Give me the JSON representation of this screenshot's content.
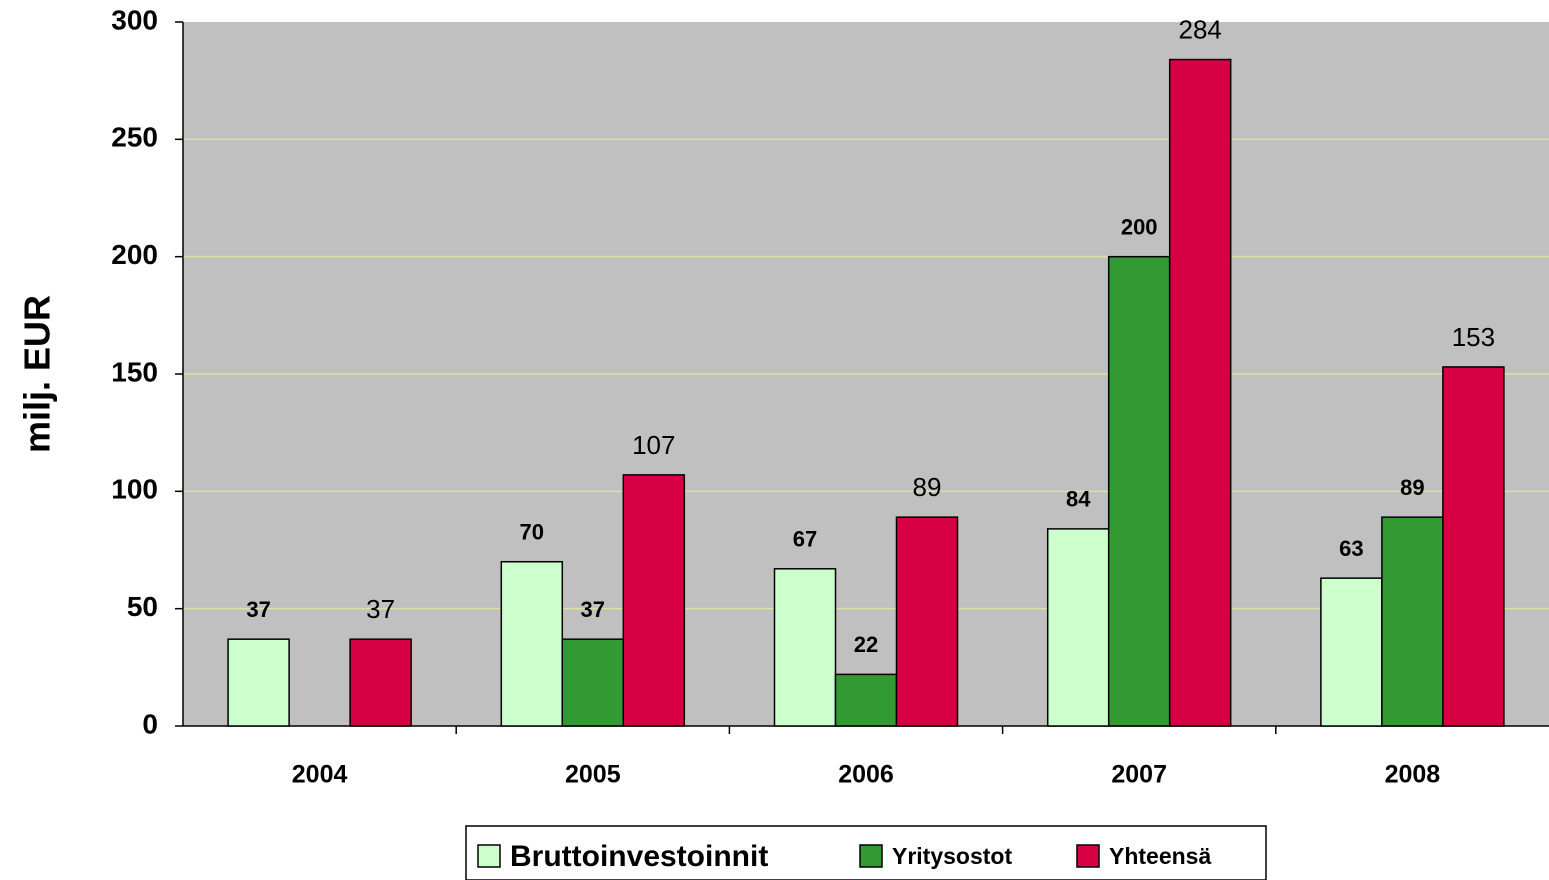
{
  "chart_data": {
    "type": "bar",
    "y_label": "milj. EUR",
    "categories": [
      "2004",
      "2005",
      "2006",
      "2007",
      "2008"
    ],
    "series": [
      {
        "name": "Bruttoinvestoinnit",
        "color": "#ccffcc",
        "values": [
          37,
          70,
          67,
          84,
          63
        ]
      },
      {
        "name": "Yritysostot",
        "color": "#339933",
        "values": [
          null,
          37,
          22,
          200,
          89
        ]
      },
      {
        "name": "Yhteensä",
        "color": "#d80045",
        "values": [
          37,
          107,
          89,
          284,
          153
        ]
      }
    ],
    "ylim": [
      0,
      300
    ],
    "yticks": [
      0,
      50,
      100,
      150,
      200,
      250,
      300
    ],
    "grid": true,
    "background": "#c0c0c0",
    "legend": "bottom"
  }
}
